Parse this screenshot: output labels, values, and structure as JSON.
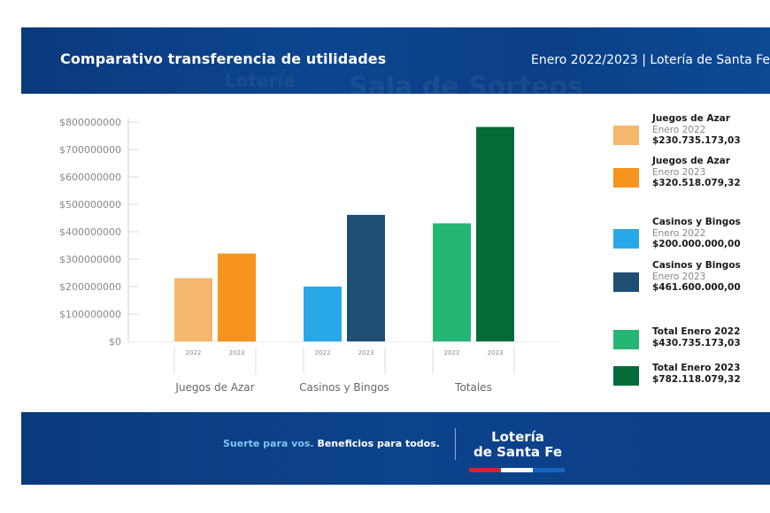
{
  "header": {
    "title": "Comparativo transferencia de utilidades",
    "subtitle": "Enero 2022/2023  |  Lotería de Santa Fe",
    "background_watermark": [
      "Lotería",
      "Sala de Sorteos"
    ]
  },
  "chart_data": {
    "type": "bar",
    "title": "Comparativo transferencia de utilidades",
    "xlabel": "",
    "ylabel": "",
    "categories": [
      "Juegos de Azar",
      "Casinos y Bingos",
      "Totales"
    ],
    "sub_categories": [
      "2022",
      "2023"
    ],
    "series": [
      {
        "name": "2022",
        "values": [
          230735173.03,
          200000000.0,
          430735173.03
        ],
        "colors": [
          "#f5b76b",
          "#29a8e8",
          "#25b574"
        ]
      },
      {
        "name": "2023",
        "values": [
          320518079.32,
          461600000.0,
          782118079.32
        ],
        "colors": [
          "#f7941d",
          "#1f4e74",
          "#026b38"
        ]
      }
    ],
    "ylim": [
      0,
      800000000
    ],
    "yticks": [
      0,
      100000000,
      200000000,
      300000000,
      400000000,
      500000000,
      600000000,
      700000000,
      800000000
    ],
    "ytick_labels": [
      "$0",
      "$100000000",
      "$200000000",
      "$300000000",
      "$400000000",
      "$500000000",
      "$600000000",
      "$700000000",
      "$800000000"
    ],
    "grid": false,
    "legend_position": "right"
  },
  "legend": [
    {
      "title": "Juegos de Azar",
      "period": "Enero 2022",
      "value": "$230.735.173,03",
      "color": "#f5b76b"
    },
    {
      "title": "Juegos de Azar",
      "period": "Enero 2023",
      "value": "$320.518.079,32",
      "color": "#f7941d"
    },
    {
      "title": "Casinos y Bingos",
      "period": "Enero 2022",
      "value": "$200.000.000,00",
      "color": "#29a8e8"
    },
    {
      "title": "Casinos y Bingos",
      "period": "Enero 2023",
      "value": "$461.600.000,00",
      "color": "#1f4e74"
    },
    {
      "title": "Total Enero 2022",
      "period": "",
      "value": "$430.735.173,03",
      "color": "#25b574"
    },
    {
      "title": "Total Enero 2023",
      "period": "",
      "value": "$782.118.079,32",
      "color": "#026b38"
    }
  ],
  "footer": {
    "slogan_part1": "Suerte para vos. ",
    "slogan_part2": "Beneficios para todos.",
    "logo_line1": "Lotería",
    "logo_line2": "de Santa Fe",
    "flag_colors": [
      "#d7232f",
      "#ffffff",
      "#1565c0"
    ]
  }
}
